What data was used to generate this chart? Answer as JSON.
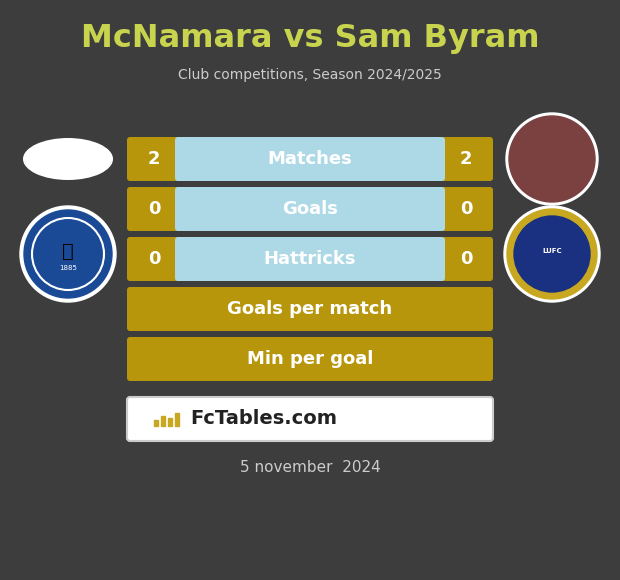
{
  "title": "McNamara vs Sam Byram",
  "subtitle": "Club competitions, Season 2024/2025",
  "background_color": "#3d3d3d",
  "title_color": "#c8d44e",
  "subtitle_color": "#cccccc",
  "date_text": "5 november  2024",
  "date_color": "#cccccc",
  "watermark_text": "FcTables.com",
  "rows": [
    {
      "label": "Matches",
      "left_val": "2",
      "right_val": "2",
      "has_values": true
    },
    {
      "label": "Goals",
      "left_val": "0",
      "right_val": "0",
      "has_values": true
    },
    {
      "label": "Hattricks",
      "left_val": "0",
      "right_val": "0",
      "has_values": true
    },
    {
      "label": "Goals per match",
      "left_val": "",
      "right_val": "",
      "has_values": false
    },
    {
      "label": "Min per goal",
      "left_val": "",
      "right_val": "",
      "has_values": false
    }
  ],
  "gold_color": "#b8960c",
  "blue_color": "#add8e6",
  "label_color": "#ffffff",
  "num_color": "#ffffff",
  "watermark_bg": "#ffffff",
  "watermark_border": "#cccccc",
  "watermark_text_color": "#222222",
  "fig_width": 6.2,
  "fig_height": 5.8,
  "dpi": 100
}
